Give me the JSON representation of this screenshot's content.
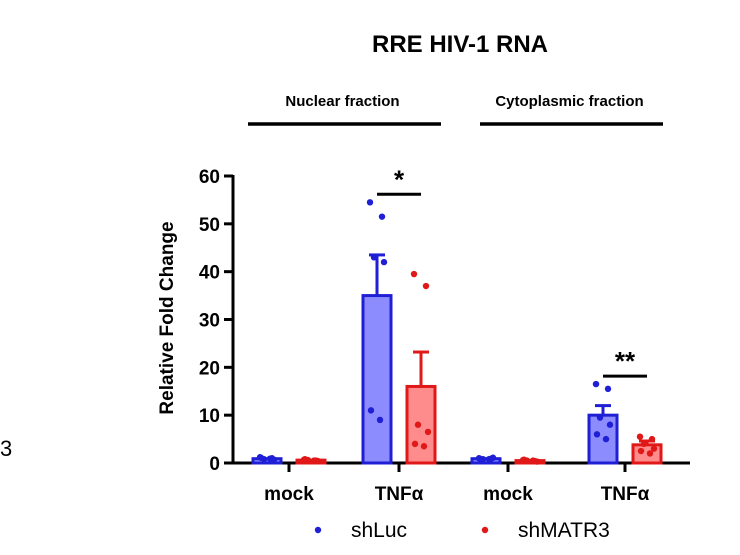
{
  "stray_label": "3",
  "chart_data": {
    "type": "bar",
    "title": "RRE HIV-1 RNA",
    "ylabel": "Relative Fold Change",
    "xlabel": "",
    "ylim": [
      0,
      60
    ],
    "yticks": [
      0,
      10,
      20,
      30,
      40,
      50,
      60
    ],
    "groups": [
      {
        "label": "Nuclear fraction",
        "categories": [
          "mock",
          "TNFα"
        ]
      },
      {
        "label": "Cytoplasmic fraction",
        "categories": [
          "mock",
          "TNFα"
        ]
      }
    ],
    "categories": [
      "mock",
      "TNFα",
      "mock",
      "TNFα"
    ],
    "series": [
      {
        "name": "shLuc",
        "color": "#1f1fd6",
        "fill": "#8c8cff",
        "values": [
          0.9,
          35.0,
          0.9,
          10.0
        ],
        "errors": [
          0.2,
          8.5,
          0.2,
          2.0
        ],
        "points": [
          [
            1.2,
            1.0,
            0.8,
            0.7,
            1.1,
            0.9
          ],
          [
            54.5,
            51.5,
            43.0,
            42.0,
            11.0,
            9.0
          ],
          [
            1.0,
            0.9,
            0.8,
            1.1,
            0.9,
            0.8
          ],
          [
            16.5,
            15.5,
            9.5,
            8.0,
            6.0,
            5.0
          ]
        ]
      },
      {
        "name": "shMATR3",
        "color": "#e01818",
        "fill": "#ff8c8c",
        "values": [
          0.6,
          16.0,
          0.5,
          3.8
        ],
        "errors": [
          0.1,
          7.2,
          0.1,
          0.8
        ],
        "points": [
          [
            0.7,
            0.5,
            0.6,
            0.4,
            0.8,
            0.5
          ],
          [
            39.5,
            37.0,
            8.0,
            6.5,
            4.0,
            3.5
          ],
          [
            0.6,
            0.4,
            0.5,
            0.3,
            0.7,
            0.5
          ],
          [
            5.5,
            5.0,
            4.0,
            3.0,
            2.5,
            2.0
          ]
        ]
      }
    ],
    "significance": [
      {
        "category_index": 1,
        "label": "*"
      },
      {
        "category_index": 3,
        "label": "**"
      }
    ],
    "legend_position": "bottom"
  }
}
